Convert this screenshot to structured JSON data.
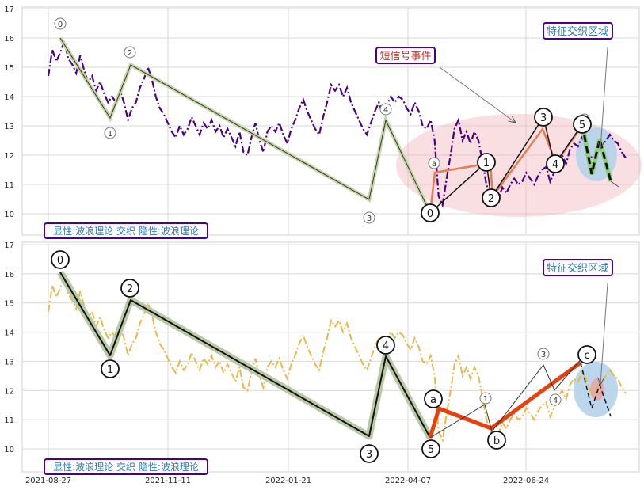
{
  "chart_data": [
    {
      "type": "line",
      "panel": "top",
      "ylim": [
        9.7,
        17.1
      ],
      "yticks": [
        "10",
        "11",
        "12",
        "13",
        "14",
        "15",
        "16",
        "17"
      ],
      "x": [
        "2021-08-27",
        "2021-11-11",
        "2022-01-21",
        "2022-04-07",
        "2022-06-24"
      ],
      "legend_text": "显性:波浪理论 交织 隐性:波浪理论",
      "annotation_a": "短信号事件",
      "annotation_b": "特征交织区域",
      "grid": true,
      "price_series": {
        "color": "#4b0082",
        "values": [
          [
            0,
            14.7
          ],
          [
            1,
            15.6
          ],
          [
            2,
            15.2
          ],
          [
            3,
            15.5
          ],
          [
            4,
            15.9
          ],
          [
            5,
            15.3
          ],
          [
            6,
            15.1
          ],
          [
            7,
            14.8
          ],
          [
            8,
            15.4
          ],
          [
            9,
            14.9
          ],
          [
            10,
            14.5
          ],
          [
            11,
            14.7
          ],
          [
            12,
            14.2
          ],
          [
            13,
            14.5
          ],
          [
            14,
            14.1
          ],
          [
            15,
            13.8
          ],
          [
            16,
            14.0
          ],
          [
            17,
            13.8
          ],
          [
            18,
            14.2
          ],
          [
            19,
            13.8
          ],
          [
            20,
            13.2
          ],
          [
            21,
            13.6
          ],
          [
            22,
            13.8
          ],
          [
            23,
            14.3
          ],
          [
            24,
            14.6
          ],
          [
            25,
            15.0
          ],
          [
            26,
            14.6
          ],
          [
            27,
            14.0
          ],
          [
            28,
            13.6
          ],
          [
            29,
            13.4
          ],
          [
            30,
            13.1
          ],
          [
            31,
            12.8
          ],
          [
            32,
            12.6
          ],
          [
            33,
            13.0
          ],
          [
            34,
            12.7
          ],
          [
            35,
            12.9
          ],
          [
            36,
            13.3
          ],
          [
            37,
            13.0
          ],
          [
            38,
            12.7
          ],
          [
            39,
            13.1
          ],
          [
            40,
            12.9
          ],
          [
            41,
            13.2
          ],
          [
            42,
            12.8
          ],
          [
            43,
            13.0
          ],
          [
            44,
            12.6
          ],
          [
            45,
            12.9
          ],
          [
            46,
            12.6
          ],
          [
            47,
            12.3
          ],
          [
            48,
            12.8
          ],
          [
            49,
            12.1
          ],
          [
            50,
            12.0
          ],
          [
            51,
            12.6
          ],
          [
            52,
            13.1
          ],
          [
            53,
            12.5
          ],
          [
            54,
            12.1
          ],
          [
            55,
            12.8
          ],
          [
            56,
            13.0
          ],
          [
            57,
            12.8
          ],
          [
            58,
            13.1
          ],
          [
            59,
            12.7
          ],
          [
            60,
            12.4
          ],
          [
            61,
            12.9
          ],
          [
            62,
            13.2
          ],
          [
            63,
            13.6
          ],
          [
            64,
            13.9
          ],
          [
            65,
            13.5
          ],
          [
            66,
            13.2
          ],
          [
            67,
            12.9
          ],
          [
            68,
            12.7
          ],
          [
            69,
            13.3
          ],
          [
            70,
            13.8
          ],
          [
            71,
            14.4
          ],
          [
            72,
            14.2
          ],
          [
            73,
            14.4
          ],
          [
            74,
            14.0
          ],
          [
            75,
            14.3
          ],
          [
            76,
            13.8
          ],
          [
            77,
            13.5
          ],
          [
            78,
            13.2
          ],
          [
            79,
            12.9
          ],
          [
            80,
            12.7
          ],
          [
            81,
            13.1
          ],
          [
            82,
            13.5
          ],
          [
            83,
            13.8
          ],
          [
            84,
            13.4
          ],
          [
            85,
            13.7
          ],
          [
            86,
            14.0
          ],
          [
            87,
            13.8
          ],
          [
            88,
            14.0
          ],
          [
            89,
            13.9
          ],
          [
            90,
            13.6
          ],
          [
            91,
            13.4
          ],
          [
            92,
            13.8
          ],
          [
            93,
            13.5
          ],
          [
            94,
            13.0
          ],
          [
            95,
            12.9
          ],
          [
            96,
            13.2
          ],
          [
            97,
            12.5
          ],
          [
            98,
            10.6
          ],
          [
            99,
            10.3
          ],
          [
            100,
            11.2
          ],
          [
            101,
            12.0
          ],
          [
            102,
            12.9
          ],
          [
            103,
            13.2
          ],
          [
            104,
            12.5
          ],
          [
            105,
            12.8
          ],
          [
            106,
            12.4
          ],
          [
            107,
            12.8
          ],
          [
            108,
            12.5
          ],
          [
            109,
            11.8
          ],
          [
            110,
            11.0
          ],
          [
            111,
            10.6
          ],
          [
            112,
            10.4
          ],
          [
            113,
            10.5
          ],
          [
            114,
            10.9
          ],
          [
            115,
            10.7
          ],
          [
            116,
            11.0
          ],
          [
            117,
            11.2
          ],
          [
            118,
            11.0
          ],
          [
            119,
            11.1
          ],
          [
            120,
            11.4
          ],
          [
            121,
            11.2
          ],
          [
            122,
            11.0
          ],
          [
            123,
            11.3
          ],
          [
            124,
            11.5
          ],
          [
            125,
            11.6
          ],
          [
            126,
            11.1
          ],
          [
            127,
            11.4
          ],
          [
            128,
            11.8
          ],
          [
            129,
            12.0
          ],
          [
            130,
            11.7
          ],
          [
            131,
            12.2
          ],
          [
            132,
            12.4
          ],
          [
            133,
            12.3
          ],
          [
            134,
            12.6
          ],
          [
            135,
            12.4
          ],
          [
            136,
            12.0
          ],
          [
            137,
            11.8
          ],
          [
            138,
            12.1
          ],
          [
            139,
            12.3
          ],
          [
            140,
            12.5
          ],
          [
            141,
            12.7
          ],
          [
            142,
            12.5
          ],
          [
            143,
            12.4
          ],
          [
            144,
            12.1
          ],
          [
            145,
            11.9
          ]
        ]
      },
      "wave_labels": [
        "0",
        "1",
        "2",
        "3",
        "4",
        "5",
        "a"
      ],
      "major_labels": [
        "0",
        "1",
        "2",
        "3",
        "4",
        "5"
      ]
    },
    {
      "type": "line",
      "panel": "bottom",
      "ylim": [
        9.7,
        17.1
      ],
      "yticks": [
        "10",
        "11",
        "12",
        "13",
        "14",
        "15",
        "16",
        "17"
      ],
      "legend_text": "显性:波浪理论 交织 隐性:波浪理论",
      "annotation_b": "特征交织区域",
      "grid": true,
      "price_series": {
        "color": "#e8b84a"
      },
      "wave_labels": [
        "0",
        "1",
        "2",
        "3",
        "4",
        "5",
        "a",
        "b",
        "c"
      ]
    }
  ],
  "x_axis": {
    "tick_labels": [
      "2021-08-27",
      "2021-11-11",
      "2022-01-21",
      "2022-04-07",
      "2022-06-24"
    ]
  }
}
